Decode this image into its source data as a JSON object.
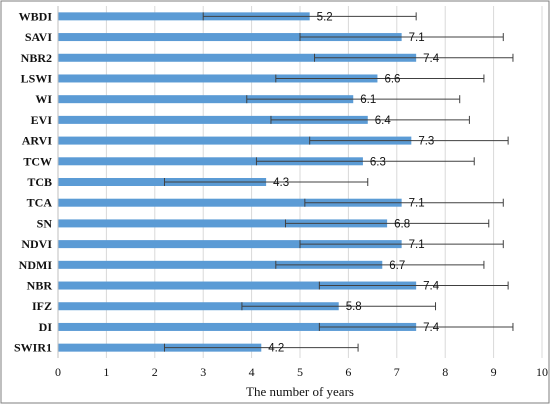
{
  "chart_data": {
    "type": "bar",
    "orientation": "horizontal",
    "categories": [
      "WBDI",
      "SAVI",
      "NBR2",
      "LSWI",
      "WI",
      "EVI",
      "ARVI",
      "TCW",
      "TCB",
      "TCA",
      "SN",
      "NDVI",
      "NDMI",
      "NBR",
      "IFZ",
      "DI",
      "SWIR1"
    ],
    "values": [
      5.2,
      7.1,
      7.4,
      6.6,
      6.1,
      6.4,
      7.3,
      6.3,
      4.3,
      7.1,
      6.8,
      7.1,
      6.7,
      7.4,
      5.8,
      7.4,
      4.2
    ],
    "error_low": [
      3.0,
      5.0,
      5.3,
      4.5,
      3.9,
      4.4,
      5.2,
      4.1,
      2.2,
      5.1,
      4.7,
      5.0,
      4.5,
      5.4,
      3.8,
      5.4,
      2.2
    ],
    "error_high": [
      7.4,
      9.2,
      9.4,
      8.8,
      8.3,
      8.5,
      9.3,
      8.6,
      6.4,
      9.2,
      8.9,
      9.2,
      8.8,
      9.3,
      7.8,
      9.4,
      6.2
    ],
    "data_labels": [
      "5.2",
      "7.1",
      "7.4",
      "6.6",
      "6.1",
      "6.4",
      "7.3",
      "6.3",
      "4.3",
      "7.1",
      "6.8",
      "7.1",
      "6.7",
      "7.4",
      "5.8",
      "7.4",
      "4.2"
    ],
    "xlabel": "The number of years",
    "ylabel": "",
    "xlim": [
      0,
      10
    ],
    "xticks": [
      "0",
      "1",
      "2",
      "3",
      "4",
      "5",
      "6",
      "7",
      "8",
      "9",
      "10"
    ],
    "grid": "vertical",
    "legend": "none",
    "colors": {
      "bar": "#5b9bd5",
      "grid": "#d9d9d9",
      "error": "#404040",
      "border": "#7f7f7f"
    }
  }
}
